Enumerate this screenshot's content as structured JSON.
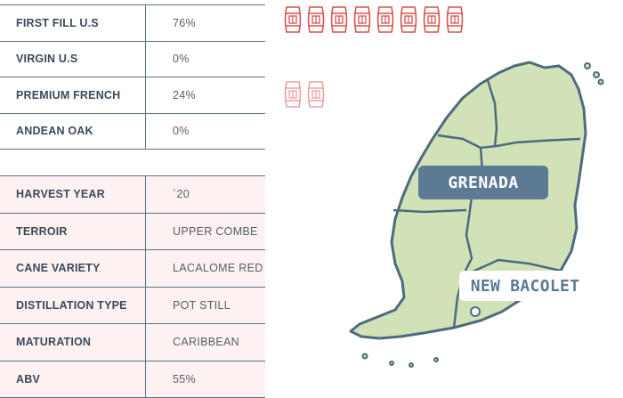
{
  "casks": [
    {
      "label": "FIRST FILL U.S",
      "value": "76%",
      "barrels": 8
    },
    {
      "label": "VIRGIN U.S",
      "value": "0%",
      "barrels": 0
    },
    {
      "label": "PREMIUM FRENCH",
      "value": "24%",
      "barrels": 2
    },
    {
      "label": "ANDEAN OAK",
      "value": "0%",
      "barrels": 0
    }
  ],
  "specs": [
    {
      "label": "HARVEST YEAR",
      "value": "`20"
    },
    {
      "label": "TERROIR",
      "value": "UPPER COMBE"
    },
    {
      "label": "CANE VARIETY",
      "value": "LACALOME RED"
    },
    {
      "label": "DISTILLATION TYPE",
      "value": "POT STILL"
    },
    {
      "label": "MATURATION",
      "value": "CARIBBEAN"
    },
    {
      "label": "ABV",
      "value": "55%"
    }
  ],
  "map": {
    "country_label": "GRENADA",
    "location_label": "NEW BACOLET",
    "land_color": "#d2e2b8",
    "border_color": "#4f6a80",
    "barrel_color": "#d9534f"
  }
}
